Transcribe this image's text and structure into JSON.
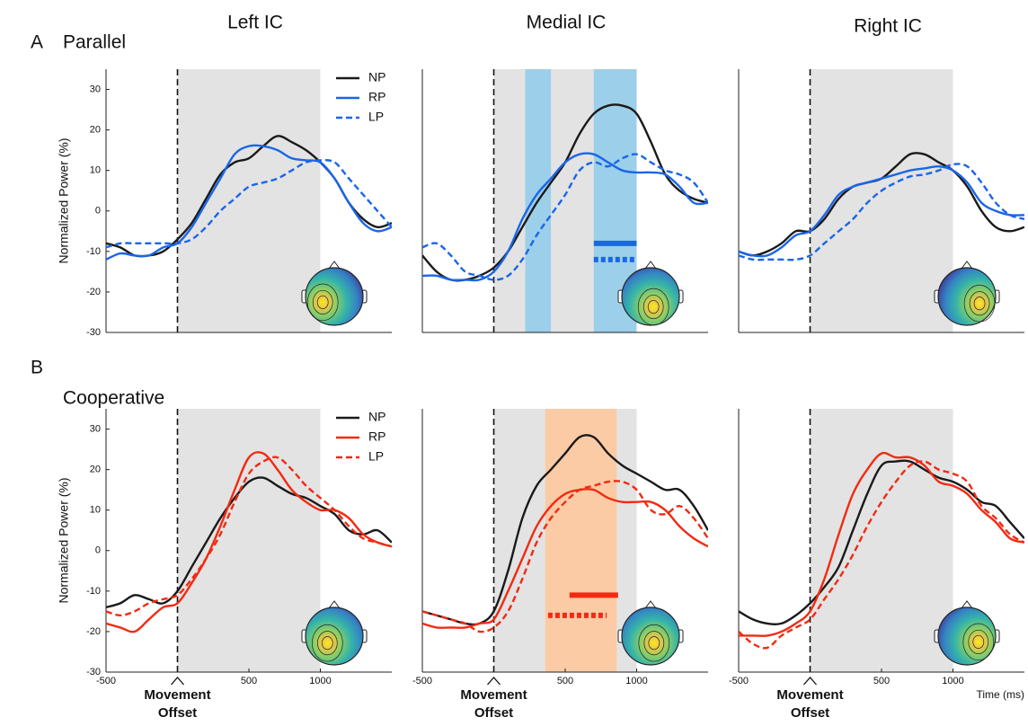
{
  "figure": {
    "columns": [
      "Left IC",
      "Medial IC",
      "Right IC"
    ],
    "rows": [
      {
        "letter": "A",
        "label": "Parallel"
      },
      {
        "letter": "B",
        "label": "Cooperative"
      }
    ]
  },
  "chart_data": [
    {
      "type": "line",
      "xlim": [
        -500,
        1500
      ],
      "ylim": [
        -30,
        35
      ],
      "yticks": [
        -30,
        -20,
        -10,
        0,
        10,
        20,
        30
      ],
      "ylabel": "Normalized Power (%)",
      "legend": "upper right",
      "shade": [
        0,
        1000
      ],
      "shade_color": "#e3e3e3",
      "event_line": 0,
      "x": [
        -500,
        -400,
        -300,
        -200,
        -100,
        0,
        100,
        200,
        300,
        400,
        500,
        600,
        700,
        800,
        900,
        1000,
        1100,
        1200,
        1300,
        1400,
        1500
      ],
      "series": [
        {
          "name": "NP",
          "color": "#1a1a1a",
          "dash": false,
          "values": [
            -8,
            -9,
            -11,
            -11,
            -10,
            -7,
            -3,
            3,
            9,
            12,
            13,
            16,
            18.5,
            17,
            15,
            12,
            8,
            2,
            -2,
            -4,
            -3
          ]
        },
        {
          "name": "RP",
          "color": "#1a66e8",
          "dash": false,
          "values": [
            -12,
            -10.5,
            -11,
            -11,
            -9,
            -8,
            -4,
            2,
            8,
            14,
            16,
            16,
            15,
            13,
            12.5,
            12,
            8,
            2,
            -3,
            -5,
            -4
          ]
        },
        {
          "name": "LP",
          "color": "#1a66e8",
          "dash": true,
          "values": [
            -9,
            -8,
            -8,
            -8,
            -8,
            -8,
            -7,
            -4,
            0,
            3,
            6,
            7,
            8,
            10,
            12,
            12.5,
            12,
            8,
            4,
            0,
            -4
          ]
        }
      ]
    },
    {
      "type": "line",
      "xlim": [
        -500,
        1500
      ],
      "ylim": [
        -30,
        35
      ],
      "shade": [
        0,
        1000
      ],
      "shade_color": "#e3e3e3",
      "event_line": 0,
      "bands": [
        {
          "range": [
            220,
            400
          ],
          "color": "#9ccfe9"
        },
        {
          "range": [
            700,
            1000
          ],
          "color": "#9ccfe9"
        }
      ],
      "sig_bars": [
        {
          "x": [
            700,
            1000
          ],
          "y": -8,
          "color": "#1a66e8",
          "dash": false
        },
        {
          "x": [
            700,
            1000
          ],
          "y": -12,
          "color": "#1a66e8",
          "dash": true
        }
      ],
      "x": [
        -500,
        -400,
        -300,
        -200,
        -100,
        0,
        100,
        200,
        300,
        400,
        500,
        600,
        700,
        800,
        900,
        1000,
        1100,
        1200,
        1300,
        1400,
        1500
      ],
      "series": [
        {
          "color": "#1a1a1a",
          "dash": false,
          "values": [
            -11,
            -15,
            -17,
            -17,
            -16,
            -14,
            -10,
            -4,
            2,
            7,
            12,
            19,
            24,
            26,
            26,
            24,
            17,
            9,
            5,
            3,
            2
          ]
        },
        {
          "color": "#1a66e8",
          "dash": false,
          "values": [
            -16,
            -16,
            -17,
            -17,
            -17,
            -15,
            -10,
            -2,
            4,
            8,
            12,
            14,
            14,
            12,
            10,
            9.5,
            9.5,
            9,
            6,
            2,
            2
          ]
        },
        {
          "color": "#1a66e8",
          "dash": true,
          "values": [
            -9,
            -8,
            -11,
            -15,
            -16,
            -17,
            -16,
            -12,
            -6,
            -1,
            4,
            10,
            12,
            11,
            13,
            14,
            12,
            10,
            9,
            7,
            2
          ]
        }
      ]
    },
    {
      "type": "line",
      "xlim": [
        -500,
        1500
      ],
      "ylim": [
        -30,
        35
      ],
      "shade": [
        0,
        1000
      ],
      "shade_color": "#e3e3e3",
      "event_line": 0,
      "x": [
        -500,
        -400,
        -300,
        -200,
        -100,
        0,
        100,
        200,
        300,
        400,
        500,
        600,
        700,
        800,
        900,
        1000,
        1100,
        1200,
        1300,
        1400,
        1500
      ],
      "series": [
        {
          "color": "#1a1a1a",
          "dash": false,
          "values": [
            -10,
            -11,
            -10,
            -8,
            -5,
            -5,
            -2,
            3,
            6,
            7,
            8,
            11,
            14,
            14,
            12,
            10,
            6,
            0,
            -4,
            -5,
            -4
          ]
        },
        {
          "color": "#1a66e8",
          "dash": false,
          "values": [
            -10,
            -11,
            -11,
            -9,
            -6,
            -5,
            -1,
            4,
            6,
            7,
            8,
            9,
            10,
            10.5,
            11,
            10,
            7,
            2,
            0,
            -1,
            -1
          ]
        },
        {
          "color": "#1a66e8",
          "dash": true,
          "values": [
            -11,
            -12,
            -12,
            -12,
            -12,
            -11,
            -8,
            -5,
            -2,
            2,
            5,
            7,
            8.5,
            9,
            10,
            11.5,
            11,
            7,
            2,
            -1,
            -2
          ]
        }
      ]
    },
    {
      "type": "line",
      "xlim": [
        -500,
        1500
      ],
      "ylim": [
        -30,
        35
      ],
      "yticks": [
        -30,
        -20,
        -10,
        0,
        10,
        20,
        30
      ],
      "xticks": [
        -500,
        500,
        1000
      ],
      "ylabel": "Normalized Power (%)",
      "legend": "upper right",
      "shade": [
        0,
        1000
      ],
      "shade_color": "#e3e3e3",
      "event_line": 0,
      "annotation": {
        "lines": [
          "Movement",
          "Offset"
        ],
        "x": 0
      },
      "x": [
        -500,
        -400,
        -300,
        -200,
        -100,
        0,
        100,
        200,
        300,
        400,
        500,
        600,
        700,
        800,
        900,
        1000,
        1100,
        1200,
        1300,
        1400,
        1500
      ],
      "series": [
        {
          "name": "NP",
          "color": "#1a1a1a",
          "dash": false,
          "values": [
            -14,
            -13,
            -11,
            -12,
            -13,
            -10,
            -4,
            2,
            8,
            13,
            17,
            18,
            16,
            14,
            13,
            11,
            9,
            5,
            4,
            5,
            2
          ]
        },
        {
          "name": "RP",
          "color": "#f22a12",
          "dash": false,
          "values": [
            -18,
            -19,
            -20,
            -17,
            -14,
            -13,
            -8,
            -2,
            6,
            15,
            23,
            24,
            20,
            15,
            12,
            10,
            10,
            8,
            4,
            2,
            1
          ]
        },
        {
          "name": "LP",
          "color": "#f22a12",
          "dash": true,
          "values": [
            -15,
            -16,
            -15,
            -13,
            -12,
            -11,
            -7,
            -2,
            4,
            12,
            19,
            22,
            23,
            20,
            16,
            13,
            10,
            6,
            3,
            2,
            1
          ]
        }
      ]
    },
    {
      "type": "line",
      "xlim": [
        -500,
        1500
      ],
      "ylim": [
        -30,
        35
      ],
      "xticks": [
        -500,
        500,
        1000
      ],
      "shade": [
        0,
        1000
      ],
      "shade_color": "#e3e3e3",
      "event_line": 0,
      "annotation": {
        "lines": [
          "Movement",
          "Offset"
        ],
        "x": 0
      },
      "bands": [
        {
          "range": [
            360,
            860
          ],
          "color": "#fbcba5"
        }
      ],
      "sig_bars": [
        {
          "x": [
            530,
            870
          ],
          "y": -11,
          "color": "#f22a12",
          "dash": false
        },
        {
          "x": [
            380,
            790
          ],
          "y": -16,
          "color": "#f22a12",
          "dash": true
        }
      ],
      "x": [
        -500,
        -400,
        -300,
        -200,
        -100,
        0,
        100,
        200,
        300,
        400,
        500,
        600,
        700,
        800,
        900,
        1000,
        1100,
        1200,
        1300,
        1400,
        1500
      ],
      "series": [
        {
          "color": "#1a1a1a",
          "dash": false,
          "values": [
            -15,
            -16,
            -17,
            -18,
            -18,
            -15,
            -5,
            8,
            16,
            20,
            24,
            28,
            28,
            24,
            21,
            19,
            17,
            15,
            15,
            11,
            5
          ]
        },
        {
          "color": "#f22a12",
          "dash": false,
          "values": [
            -18,
            -19,
            -19,
            -19,
            -18,
            -17,
            -10,
            -2,
            6,
            11,
            14,
            15,
            15,
            13,
            12,
            12,
            12,
            10,
            6,
            3,
            1
          ]
        },
        {
          "color": "#f22a12",
          "dash": true,
          "values": [
            -15,
            -16,
            -17,
            -18,
            -20,
            -19,
            -15,
            -7,
            2,
            8,
            12,
            15,
            16,
            17,
            17,
            15,
            10,
            9,
            11,
            8,
            3
          ]
        }
      ]
    },
    {
      "type": "line",
      "xlim": [
        -500,
        1500
      ],
      "ylim": [
        -30,
        35
      ],
      "xticks": [
        -500,
        500,
        1000
      ],
      "shade": [
        0,
        1000
      ],
      "shade_color": "#e3e3e3",
      "event_line": 0,
      "annotation": {
        "lines": [
          "Movement",
          "Offset"
        ],
        "x": 0
      },
      "xlabel": "Time (ms)",
      "x": [
        -500,
        -400,
        -300,
        -200,
        -100,
        0,
        100,
        200,
        300,
        400,
        500,
        600,
        700,
        800,
        900,
        1000,
        1100,
        1200,
        1300,
        1400,
        1500
      ],
      "series": [
        {
          "color": "#1a1a1a",
          "dash": false,
          "values": [
            -15,
            -17,
            -18,
            -18,
            -16,
            -13,
            -9,
            -4,
            5,
            14,
            21,
            22,
            22,
            20,
            18,
            17,
            15,
            12,
            11,
            7,
            3
          ]
        },
        {
          "color": "#f22a12",
          "dash": false,
          "values": [
            -21,
            -21,
            -21,
            -20,
            -18,
            -15,
            -7,
            4,
            14,
            20,
            24,
            23,
            23,
            21,
            17,
            16,
            14,
            10,
            7,
            3,
            2
          ]
        },
        {
          "color": "#f22a12",
          "dash": true,
          "values": [
            -20,
            -23,
            -24,
            -21,
            -19,
            -17,
            -12,
            -7,
            -1,
            6,
            12,
            17,
            21,
            22,
            20,
            19,
            17,
            11,
            8,
            4,
            2
          ]
        }
      ]
    }
  ]
}
